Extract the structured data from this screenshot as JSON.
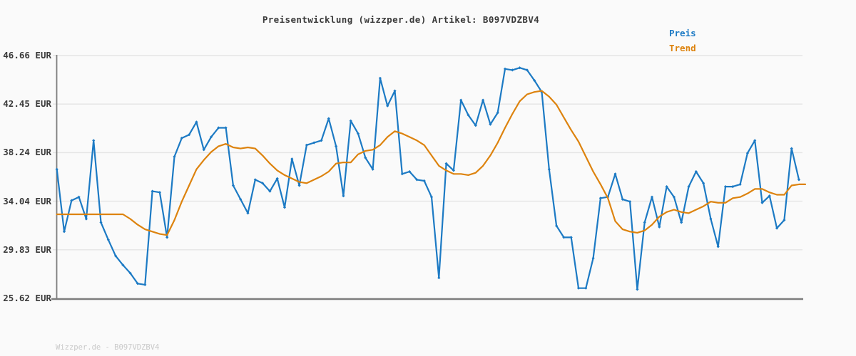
{
  "chart_data": {
    "type": "line",
    "title": "Preisentwicklung (wizzper.de) Artikel: B097VDZBV4",
    "watermark": "Wizzper.de - B097VDZBV4",
    "currency": "EUR",
    "legend_position": "top-right",
    "grid": "horizontal",
    "xlabel": "",
    "ylabel": "",
    "xtick_labels": [],
    "ytick_labels": [
      "46.66 EUR",
      "42.45 EUR",
      "38.24 EUR",
      "34.04 EUR",
      "29.83 EUR",
      "25.62 EUR"
    ],
    "ytick_values": [
      46.66,
      42.45,
      38.24,
      34.04,
      29.83,
      25.62
    ],
    "ylim": [
      25.62,
      46.66
    ],
    "series": [
      {
        "name": "Preis",
        "color": "#1c7ac4",
        "markers": true,
        "values": [
          36.8,
          31.4,
          34.1,
          34.4,
          32.5,
          39.3,
          32.2,
          30.7,
          29.3,
          28.5,
          27.8,
          26.9,
          26.8,
          34.9,
          34.8,
          30.9,
          37.9,
          39.5,
          39.8,
          40.9,
          38.5,
          39.6,
          40.4,
          40.4,
          35.4,
          34.2,
          33.0,
          35.9,
          35.6,
          34.9,
          36.0,
          33.5,
          37.7,
          35.4,
          38.9,
          39.1,
          39.3,
          41.2,
          38.8,
          34.5,
          41.0,
          39.9,
          37.8,
          36.8,
          44.7,
          42.3,
          43.6,
          36.4,
          36.6,
          35.9,
          35.8,
          34.4,
          27.4,
          37.3,
          36.7,
          42.8,
          41.5,
          40.6,
          42.8,
          40.7,
          41.7,
          45.5,
          45.4,
          45.6,
          45.4,
          44.5,
          43.5,
          36.8,
          31.9,
          30.9,
          30.9,
          26.5,
          26.5,
          29.1,
          34.3,
          34.4,
          36.4,
          34.2,
          34.0,
          26.4,
          32.2,
          34.4,
          31.8,
          35.3,
          34.4,
          32.2,
          35.3,
          36.6,
          35.6,
          32.5,
          30.1,
          35.3,
          35.3,
          35.5,
          38.2,
          39.3,
          33.9,
          34.5,
          31.7,
          32.4,
          38.6,
          35.9
        ]
      },
      {
        "name": "Trend",
        "color": "#dd830e",
        "markers": false,
        "values": [
          32.9,
          32.9,
          32.9,
          32.9,
          32.9,
          32.9,
          32.9,
          32.9,
          32.9,
          32.9,
          32.5,
          32.0,
          31.6,
          31.4,
          31.2,
          31.1,
          32.4,
          34.0,
          35.4,
          36.8,
          37.6,
          38.3,
          38.8,
          39.0,
          38.7,
          38.6,
          38.7,
          38.6,
          38.0,
          37.3,
          36.7,
          36.3,
          36.0,
          35.7,
          35.6,
          35.9,
          36.2,
          36.6,
          37.3,
          37.4,
          37.4,
          38.1,
          38.4,
          38.5,
          38.9,
          39.6,
          40.1,
          39.9,
          39.6,
          39.3,
          38.9,
          38.0,
          37.1,
          36.7,
          36.4,
          36.4,
          36.3,
          36.5,
          37.1,
          38.0,
          39.1,
          40.4,
          41.6,
          42.7,
          43.3,
          43.5,
          43.6,
          43.1,
          42.4,
          41.3,
          40.2,
          39.2,
          37.9,
          36.6,
          35.5,
          34.3,
          32.3,
          31.6,
          31.4,
          31.3,
          31.5,
          32.0,
          32.7,
          33.1,
          33.3,
          33.1,
          33.0,
          33.3,
          33.6,
          34.0,
          33.9,
          33.9,
          34.3,
          34.4,
          34.7,
          35.1,
          35.1,
          34.8,
          34.6,
          34.6,
          35.4,
          35.5
        ]
      }
    ],
    "theme": {
      "background": "#fafafa",
      "grid_color": "#e4e4e4",
      "axis_color": "#7d7d7d",
      "text_color": "#3a3a3a",
      "watermark_color": "#c9c9c9"
    }
  }
}
